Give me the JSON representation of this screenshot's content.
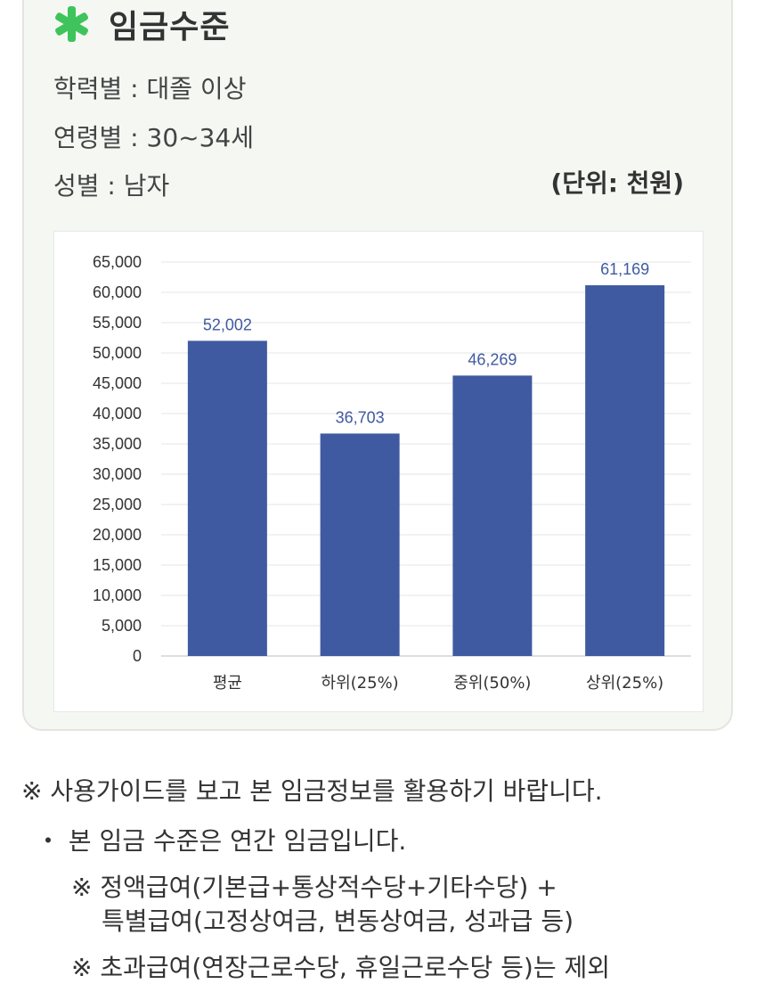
{
  "header": {
    "title": "임금수준",
    "education": "학력별 : 대졸 이상",
    "age": "연령별 : 30~34세",
    "gender": "성별 : 남자",
    "unit": "(단위: 천원)"
  },
  "colors": {
    "bar": "#3f5aa0",
    "label": "#3f5aa0",
    "accent": "#3ec45a"
  },
  "chart_data": {
    "type": "bar",
    "categories": [
      "평균",
      "하위(25%)",
      "중위(50%)",
      "상위(25%)"
    ],
    "values": [
      52002,
      36703,
      46269,
      61169
    ],
    "value_labels": [
      "52,002",
      "36,703",
      "46,269",
      "61,169"
    ],
    "y_ticks": [
      0,
      5000,
      10000,
      15000,
      20000,
      25000,
      30000,
      35000,
      40000,
      45000,
      50000,
      55000,
      60000,
      65000
    ],
    "y_tick_labels": [
      "0",
      "5,000",
      "10,000",
      "15,000",
      "20,000",
      "25,000",
      "30,000",
      "35,000",
      "40,000",
      "45,000",
      "50,000",
      "55,000",
      "60,000",
      "65,000"
    ],
    "ylim": [
      0,
      65000
    ],
    "grid": true,
    "legend": "none"
  },
  "notes": {
    "guide": "※ 사용가이드를 보고 본 임금정보를 활용하기 바랍니다.",
    "annual": "・ 본 임금 수준은 연간 임금입니다.",
    "includes_line1": "※ 정액급여(기본급+통상적수당+기타수당) +",
    "includes_line2": "특별급여(고정상여금, 변동상여금, 성과급 등)",
    "excludes": "※ 초과급여(연장근로수당, 휴일근로수당 등)는 제외"
  }
}
